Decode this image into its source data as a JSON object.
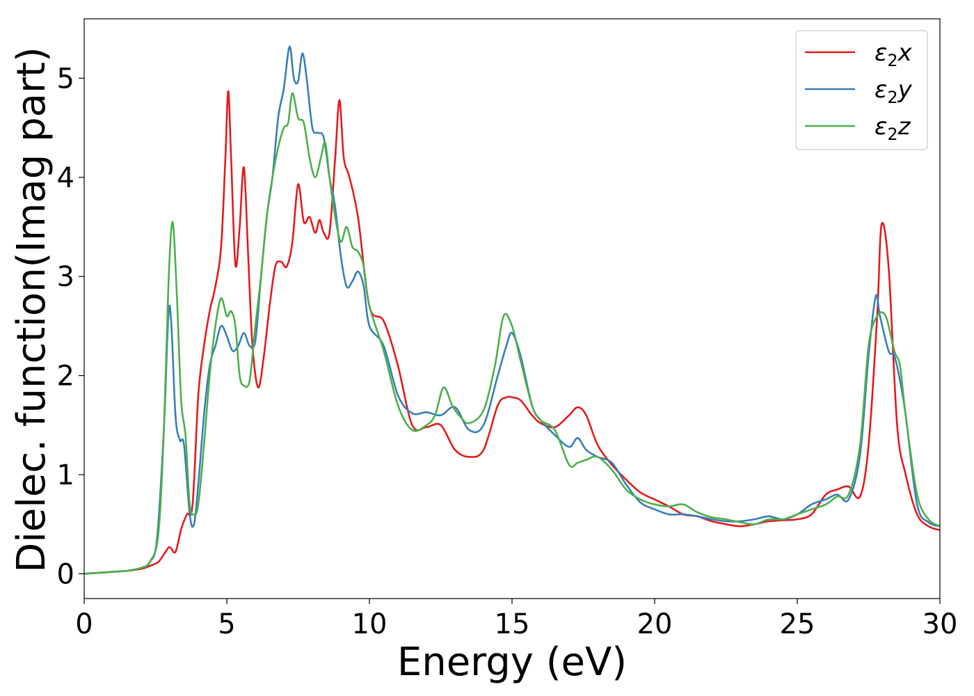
{
  "chart_data": {
    "type": "line",
    "title": "",
    "xlabel": "Energy (eV)",
    "ylabel": "Dielec. function(Imag part)",
    "xlim": [
      0,
      30
    ],
    "ylim": [
      -0.25,
      5.6
    ],
    "xticks": [
      0,
      5,
      10,
      15,
      20,
      25,
      30
    ],
    "xtick_labels": [
      "0",
      "5",
      "10",
      "15",
      "20",
      "25",
      "30"
    ],
    "yticks": [
      0,
      1,
      2,
      3,
      4,
      5
    ],
    "ytick_labels": [
      "0",
      "1",
      "2",
      "3",
      "4",
      "5"
    ],
    "grid": false,
    "legend_position": "top-right",
    "series": [
      {
        "name": "ε2x",
        "label_base": "ε",
        "label_sub": "2",
        "label_var": "x",
        "color": "#e41a1c",
        "x": [
          0,
          1,
          1.5,
          2,
          2.3,
          2.6,
          2.85,
          3.0,
          3.2,
          3.4,
          3.6,
          3.8,
          4.0,
          4.2,
          4.4,
          4.6,
          4.8,
          4.95,
          5.05,
          5.15,
          5.3,
          5.45,
          5.6,
          5.75,
          5.9,
          6.1,
          6.3,
          6.5,
          6.7,
          6.9,
          7.1,
          7.3,
          7.5,
          7.7,
          7.9,
          8.1,
          8.25,
          8.4,
          8.6,
          8.8,
          8.95,
          9.1,
          9.3,
          9.6,
          10.0,
          10.5,
          11.0,
          11.5,
          12.0,
          12.5,
          13.0,
          13.5,
          14.0,
          14.5,
          14.8,
          15.0,
          15.3,
          15.7,
          16.0,
          16.5,
          17.0,
          17.3,
          17.6,
          18.0,
          18.5,
          19.0,
          19.5,
          20.0,
          20.5,
          21.0,
          21.5,
          22.0,
          22.5,
          23.0,
          23.5,
          24.0,
          24.5,
          25.0,
          25.5,
          26.0,
          26.4,
          26.8,
          27.2,
          27.5,
          27.8,
          27.95,
          28.2,
          28.5,
          28.8,
          29.2,
          29.6,
          30.0
        ],
        "y": [
          0.0,
          0.02,
          0.03,
          0.05,
          0.08,
          0.12,
          0.22,
          0.27,
          0.22,
          0.45,
          0.6,
          0.7,
          1.8,
          2.3,
          2.65,
          2.9,
          3.3,
          4.2,
          4.87,
          4.2,
          3.12,
          3.5,
          4.1,
          3.2,
          2.3,
          1.88,
          2.2,
          2.7,
          3.1,
          3.15,
          3.1,
          3.35,
          3.93,
          3.55,
          3.6,
          3.44,
          3.57,
          3.44,
          3.44,
          4.2,
          4.78,
          4.2,
          4.0,
          3.6,
          2.7,
          2.55,
          2.1,
          1.5,
          1.48,
          1.5,
          1.25,
          1.18,
          1.25,
          1.7,
          1.78,
          1.78,
          1.75,
          1.6,
          1.52,
          1.48,
          1.6,
          1.68,
          1.6,
          1.3,
          1.1,
          0.95,
          0.82,
          0.75,
          0.68,
          0.6,
          0.58,
          0.53,
          0.5,
          0.48,
          0.5,
          0.53,
          0.54,
          0.55,
          0.6,
          0.8,
          0.85,
          0.88,
          0.78,
          1.3,
          2.6,
          3.52,
          3.1,
          1.5,
          1.0,
          0.6,
          0.48,
          0.44
        ]
      },
      {
        "name": "ε2y",
        "label_base": "ε",
        "label_sub": "2",
        "label_var": "y",
        "color": "#377eb8",
        "x": [
          0,
          1,
          1.5,
          2,
          2.3,
          2.55,
          2.8,
          2.95,
          3.05,
          3.2,
          3.35,
          3.5,
          3.7,
          3.85,
          4.0,
          4.2,
          4.4,
          4.6,
          4.8,
          5.0,
          5.2,
          5.4,
          5.6,
          5.8,
          6.0,
          6.2,
          6.4,
          6.6,
          6.8,
          7.0,
          7.2,
          7.35,
          7.5,
          7.65,
          7.8,
          8.0,
          8.2,
          8.4,
          8.6,
          8.8,
          9.0,
          9.2,
          9.4,
          9.6,
          9.8,
          10.0,
          10.5,
          11.0,
          11.5,
          12.0,
          12.5,
          13.0,
          13.5,
          14.0,
          14.5,
          14.8,
          15.0,
          15.3,
          15.7,
          16.0,
          16.5,
          17.0,
          17.3,
          17.6,
          18.0,
          18.5,
          19.0,
          19.5,
          20.0,
          20.5,
          21.0,
          21.5,
          22.0,
          22.5,
          23.0,
          23.5,
          24.0,
          24.5,
          25.0,
          25.5,
          26.0,
          26.4,
          26.8,
          27.2,
          27.5,
          27.75,
          27.9,
          28.2,
          28.4,
          28.6,
          28.8,
          29.2,
          29.6,
          30.0
        ],
        "y": [
          0.0,
          0.02,
          0.03,
          0.06,
          0.12,
          0.35,
          1.5,
          2.6,
          2.55,
          1.6,
          1.35,
          1.3,
          0.6,
          0.5,
          0.9,
          1.6,
          2.1,
          2.3,
          2.5,
          2.4,
          2.25,
          2.3,
          2.43,
          2.3,
          2.35,
          3.0,
          3.6,
          4.0,
          4.6,
          4.9,
          5.32,
          5.0,
          4.97,
          5.25,
          5.0,
          4.5,
          4.45,
          4.4,
          4.0,
          3.7,
          3.2,
          2.9,
          2.95,
          3.05,
          2.9,
          2.5,
          2.3,
          1.8,
          1.62,
          1.63,
          1.6,
          1.68,
          1.45,
          1.5,
          2.0,
          2.3,
          2.43,
          2.2,
          1.7,
          1.55,
          1.4,
          1.28,
          1.37,
          1.25,
          1.18,
          1.12,
          0.9,
          0.72,
          0.65,
          0.6,
          0.6,
          0.58,
          0.55,
          0.53,
          0.53,
          0.55,
          0.58,
          0.55,
          0.6,
          0.7,
          0.75,
          0.8,
          0.75,
          1.2,
          2.2,
          2.8,
          2.6,
          2.25,
          2.2,
          1.95,
          1.6,
          0.7,
          0.52,
          0.48
        ]
      },
      {
        "name": "ε2z",
        "label_base": "ε",
        "label_sub": "2",
        "label_var": "z",
        "color": "#4daf4a",
        "x": [
          0,
          1,
          1.5,
          2,
          2.3,
          2.6,
          2.8,
          2.95,
          3.1,
          3.25,
          3.4,
          3.55,
          3.7,
          3.85,
          4.0,
          4.2,
          4.4,
          4.6,
          4.8,
          5.0,
          5.15,
          5.3,
          5.45,
          5.6,
          5.8,
          6.0,
          6.2,
          6.4,
          6.6,
          6.8,
          7.0,
          7.15,
          7.3,
          7.5,
          7.7,
          7.9,
          8.1,
          8.3,
          8.45,
          8.6,
          8.8,
          9.0,
          9.2,
          9.4,
          9.6,
          9.8,
          10.0,
          10.5,
          11.0,
          11.5,
          12.0,
          12.3,
          12.6,
          12.9,
          13.2,
          13.5,
          14.0,
          14.4,
          14.7,
          15.0,
          15.3,
          15.7,
          16.0,
          16.5,
          17.0,
          17.3,
          17.6,
          18.0,
          18.5,
          19.0,
          19.5,
          20.0,
          20.5,
          21.0,
          21.5,
          22.0,
          22.5,
          23.0,
          23.5,
          24.0,
          24.5,
          25.0,
          25.5,
          26.0,
          26.4,
          26.8,
          27.2,
          27.5,
          27.8,
          28.1,
          28.4,
          28.6,
          28.8,
          29.2,
          29.6,
          30.0
        ],
        "y": [
          0.0,
          0.02,
          0.03,
          0.06,
          0.12,
          0.4,
          1.5,
          2.9,
          3.55,
          2.8,
          1.75,
          1.4,
          0.7,
          0.6,
          0.7,
          1.3,
          2.0,
          2.5,
          2.78,
          2.6,
          2.65,
          2.5,
          2.0,
          1.9,
          1.95,
          2.5,
          3.0,
          3.6,
          4.0,
          4.3,
          4.5,
          4.55,
          4.85,
          4.6,
          4.55,
          4.2,
          4.0,
          4.2,
          4.35,
          4.0,
          3.6,
          3.35,
          3.5,
          3.3,
          3.25,
          3.1,
          2.7,
          2.25,
          1.7,
          1.45,
          1.5,
          1.6,
          1.88,
          1.7,
          1.58,
          1.52,
          1.65,
          2.1,
          2.6,
          2.5,
          2.15,
          1.7,
          1.55,
          1.45,
          1.1,
          1.12,
          1.15,
          1.18,
          1.05,
          0.85,
          0.75,
          0.7,
          0.68,
          0.7,
          0.62,
          0.57,
          0.55,
          0.52,
          0.5,
          0.55,
          0.55,
          0.6,
          0.65,
          0.7,
          0.78,
          0.8,
          1.3,
          2.3,
          2.6,
          2.6,
          2.25,
          2.1,
          1.6,
          0.8,
          0.55,
          0.48
        ]
      }
    ]
  }
}
